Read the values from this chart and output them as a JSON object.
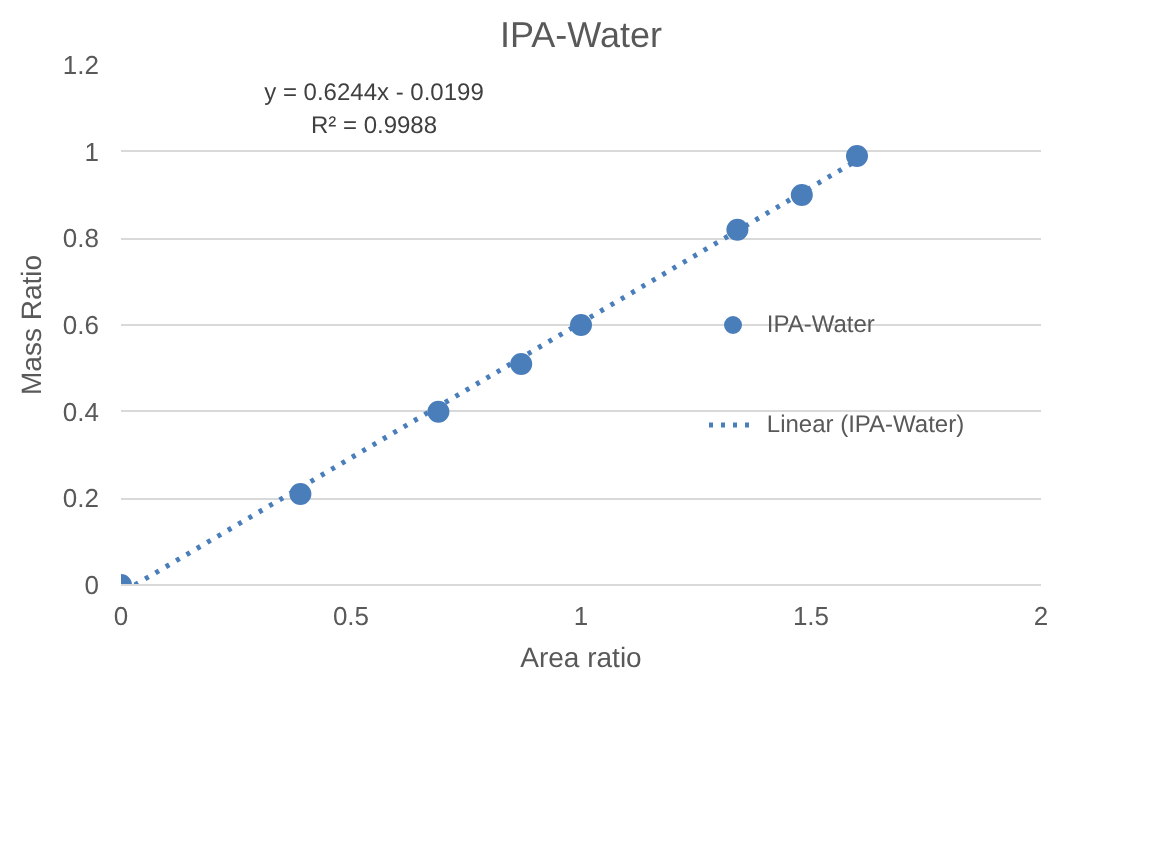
{
  "chart_data": {
    "type": "scatter",
    "title": "IPA-Water",
    "xlabel": "Area ratio",
    "ylabel": "Mass Ratio",
    "xlim": [
      0,
      2
    ],
    "xticks": [
      0,
      0.5,
      1,
      1.5,
      2
    ],
    "ylim": [
      0,
      1.2
    ],
    "yticks": [
      0,
      0.2,
      0.4,
      0.6,
      0.8,
      1,
      1.2
    ],
    "grid": "y",
    "legend": "right",
    "marker": "circle",
    "annotations": [
      "y = 0.6244x - 0.0199",
      "R² = 0.9988"
    ],
    "series": [
      {
        "name": "IPA-Water",
        "color": "#4a7ebb",
        "x": [
          0,
          0.39,
          0.69,
          0.87,
          1.0,
          1.34,
          1.48,
          1.6
        ],
        "values": [
          0,
          0.21,
          0.4,
          0.51,
          0.6,
          0.82,
          0.9,
          0.99
        ]
      },
      {
        "name": "Linear (IPA-Water)",
        "type": "line",
        "line_style": "dotted",
        "marker": "none",
        "color": "#4a7ebb",
        "x": [
          0.03,
          1.6
        ],
        "values": [
          0.0,
          0.98
        ]
      }
    ]
  }
}
